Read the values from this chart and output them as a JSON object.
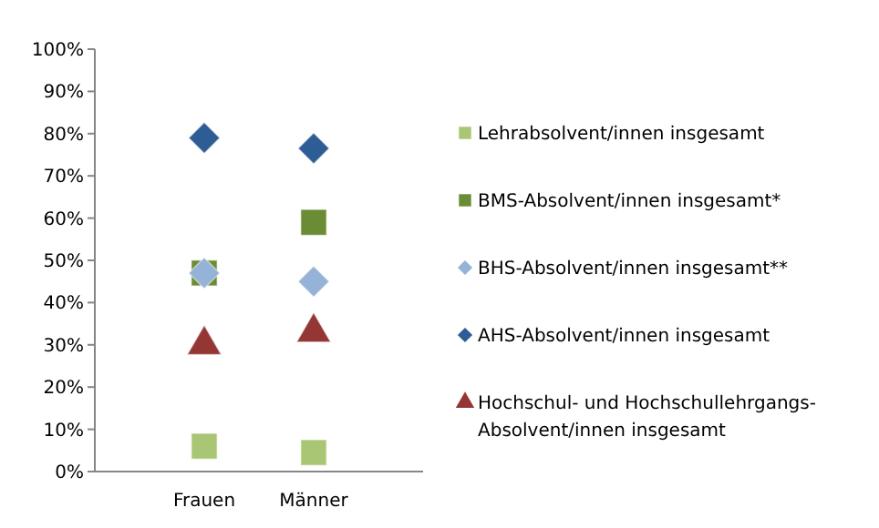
{
  "chart_data": {
    "type": "scatter",
    "categories": [
      "Frauen",
      "Männer"
    ],
    "ylim": [
      0,
      100
    ],
    "yticks": [
      {
        "value": 0,
        "label": "0%"
      },
      {
        "value": 10,
        "label": "10%"
      },
      {
        "value": 20,
        "label": "20%"
      },
      {
        "value": 30,
        "label": "30%"
      },
      {
        "value": 40,
        "label": "40%"
      },
      {
        "value": 50,
        "label": "50%"
      },
      {
        "value": 60,
        "label": "60%"
      },
      {
        "value": 70,
        "label": "70%"
      },
      {
        "value": 80,
        "label": "80%"
      },
      {
        "value": 90,
        "label": "90%"
      },
      {
        "value": 100,
        "label": "100%"
      }
    ],
    "grid": false,
    "legend": "right",
    "series": [
      {
        "name": "Lehrabsolvent/innen insgesamt",
        "color": "#a9c674",
        "marker": "square",
        "values": [
          6,
          4.5
        ]
      },
      {
        "name": "BMS-Absolvent/innen insgesamt*",
        "color": "#6a8c35",
        "marker": "square",
        "values": [
          47,
          59
        ]
      },
      {
        "name": "BHS-Absolvent/innen insgesamt**",
        "color": "#95b3d7",
        "marker": "diamond",
        "values": [
          47,
          45
        ]
      },
      {
        "name": "AHS-Absolvent/innen insgesamt",
        "color": "#2e5c94",
        "marker": "diamond",
        "values": [
          79,
          76.5
        ]
      },
      {
        "name": "Hochschul- und Hochschullehrgangs-Absolvent/innen insgesamt",
        "color": "#943634",
        "marker": "triangle",
        "values": [
          30,
          33
        ]
      }
    ]
  }
}
